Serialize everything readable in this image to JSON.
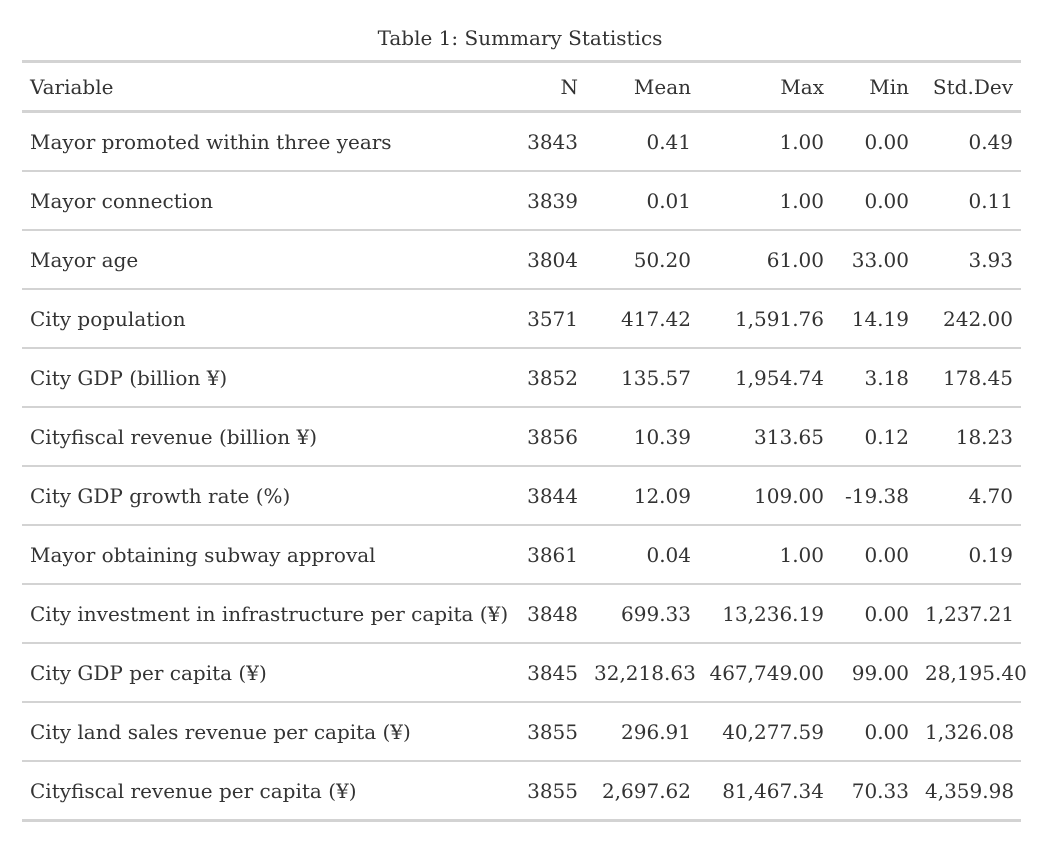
{
  "caption": "Table 1: Summary Statistics",
  "columns": {
    "variable": "Variable",
    "n": "N",
    "mean": "Mean",
    "max": "Max",
    "min": "Min",
    "sd": "Std.Dev"
  },
  "rows": [
    {
      "variable": "Mayor promoted within three years",
      "n": "3843",
      "mean": "0.41",
      "max": "1.00",
      "min": "0.00",
      "sd": "0.49"
    },
    {
      "variable": "Mayor connection",
      "n": "3839",
      "mean": "0.01",
      "max": "1.00",
      "min": "0.00",
      "sd": "0.11"
    },
    {
      "variable": "Mayor age",
      "n": "3804",
      "mean": "50.20",
      "max": "61.00",
      "min": "33.00",
      "sd": "3.93"
    },
    {
      "variable": "City population",
      "n": "3571",
      "mean": "417.42",
      "max": "1,591.76",
      "min": "14.19",
      "sd": "242.00"
    },
    {
      "variable": "City GDP (billion ¥)",
      "n": "3852",
      "mean": "135.57",
      "max": "1,954.74",
      "min": "3.18",
      "sd": "178.45"
    },
    {
      "variable": "Cityfiscal revenue (billion ¥)",
      "n": "3856",
      "mean": "10.39",
      "max": "313.65",
      "min": "0.12",
      "sd": "18.23"
    },
    {
      "variable": "City GDP growth rate (%)",
      "n": "3844",
      "mean": "12.09",
      "max": "109.00",
      "min": "-19.38",
      "sd": "4.70"
    },
    {
      "variable": "Mayor obtaining subway approval",
      "n": "3861",
      "mean": "0.04",
      "max": "1.00",
      "min": "0.00",
      "sd": "0.19"
    },
    {
      "variable": "City investment in infrastructure per capita (¥)",
      "n": "3848",
      "mean": "699.33",
      "max": "13,236.19",
      "min": "0.00",
      "sd": "1,237.21"
    },
    {
      "variable": "City GDP per capita (¥)",
      "n": "3845",
      "mean": "32,218.63",
      "max": "467,749.00",
      "min": "99.00",
      "sd": "28,195.40"
    },
    {
      "variable": "City land sales revenue per capita (¥)",
      "n": "3855",
      "mean": "296.91",
      "max": "40,277.59",
      "min": "0.00",
      "sd": "1,326.08"
    },
    {
      "variable": "Cityfiscal revenue per capita (¥)",
      "n": "3855",
      "mean": "2,697.62",
      "max": "81,467.34",
      "min": "70.33",
      "sd": "4,359.98"
    }
  ]
}
